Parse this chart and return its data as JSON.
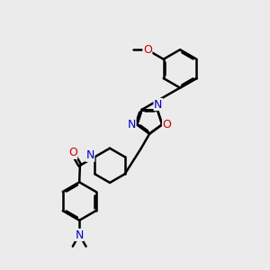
{
  "bg_color": "#ebebeb",
  "bond_color": "#000000",
  "N_color": "#0000cc",
  "O_color": "#cc0000",
  "font_size": 9,
  "label_font_size": 8,
  "line_width": 1.8,
  "fig_size": [
    3.0,
    3.0
  ],
  "dpi": 100,
  "xlim": [
    0,
    10
  ],
  "ylim": [
    0,
    10
  ]
}
